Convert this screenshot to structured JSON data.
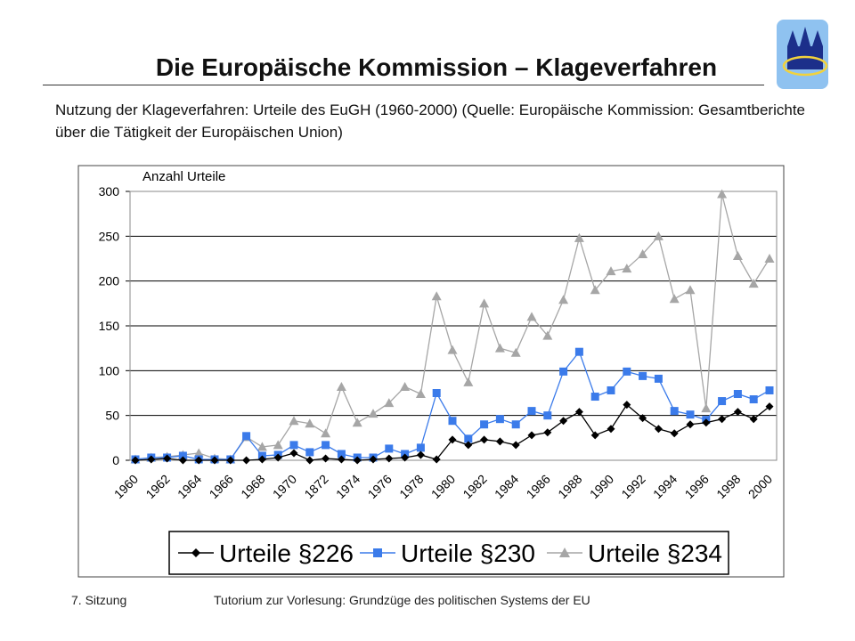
{
  "header": {
    "title": "Die Europäische Kommission – Klageverfahren",
    "subtitle": "Nutzung der Klageverfahren: Urteile des EuGH (1960-2000) (Quelle: Europäische Kommission: Gesamtberichte über die Tätigkeit der Europäischen Union)"
  },
  "footer": {
    "left": "7. Sitzung",
    "right": "Tutorium zur Vorlesung: Grundzüge des politischen Systems der EU"
  },
  "chart_data": {
    "type": "line",
    "ylabel": "Anzahl Urteile",
    "categories": [
      "1960",
      null,
      "1962",
      null,
      "1964",
      null,
      "1966",
      null,
      "1968",
      null,
      "1970",
      null,
      "1872",
      null,
      "1974",
      null,
      "1976",
      null,
      "1978",
      null,
      "1980",
      null,
      "1982",
      null,
      "1984",
      null,
      "1986",
      null,
      "1988",
      null,
      "1990",
      null,
      "1992",
      null,
      "1994",
      null,
      "1996",
      null,
      "1998",
      null,
      "2000"
    ],
    "ylim": [
      0,
      300
    ],
    "yticks": [
      0,
      50,
      100,
      150,
      200,
      250,
      300
    ],
    "grid": true,
    "series": [
      {
        "name": "Urteile §226",
        "color": "#000000",
        "marker": "diamond",
        "values": [
          0,
          1,
          2,
          0,
          0,
          0,
          0,
          0,
          1,
          3,
          8,
          0,
          2,
          1,
          0,
          1,
          2,
          3,
          6,
          1,
          23,
          17,
          23,
          21,
          17,
          28,
          31,
          44,
          54,
          28,
          35,
          62,
          47,
          35,
          30,
          40,
          42,
          46,
          54,
          46,
          60
        ]
      },
      {
        "name": "Urteile §230",
        "color": "#3b7bea",
        "marker": "square",
        "values": [
          1,
          3,
          3,
          5,
          1,
          1,
          1,
          27,
          5,
          6,
          17,
          9,
          17,
          7,
          3,
          3,
          13,
          7,
          14,
          75,
          44,
          24,
          40,
          46,
          40,
          55,
          50,
          99,
          121,
          71,
          78,
          99,
          94,
          91,
          55,
          51,
          45,
          66,
          74,
          68,
          78
        ]
      },
      {
        "name": "Urteile §234",
        "color": "#a6a6a6",
        "marker": "triangle",
        "values": [
          1,
          3,
          4,
          6,
          8,
          2,
          1,
          26,
          15,
          17,
          44,
          41,
          30,
          82,
          42,
          52,
          64,
          82,
          74,
          183,
          123,
          87,
          175,
          125,
          120,
          160,
          139,
          179,
          248,
          190,
          211,
          214,
          230,
          250,
          180,
          190,
          58,
          297,
          228,
          197,
          225
        ]
      }
    ]
  }
}
